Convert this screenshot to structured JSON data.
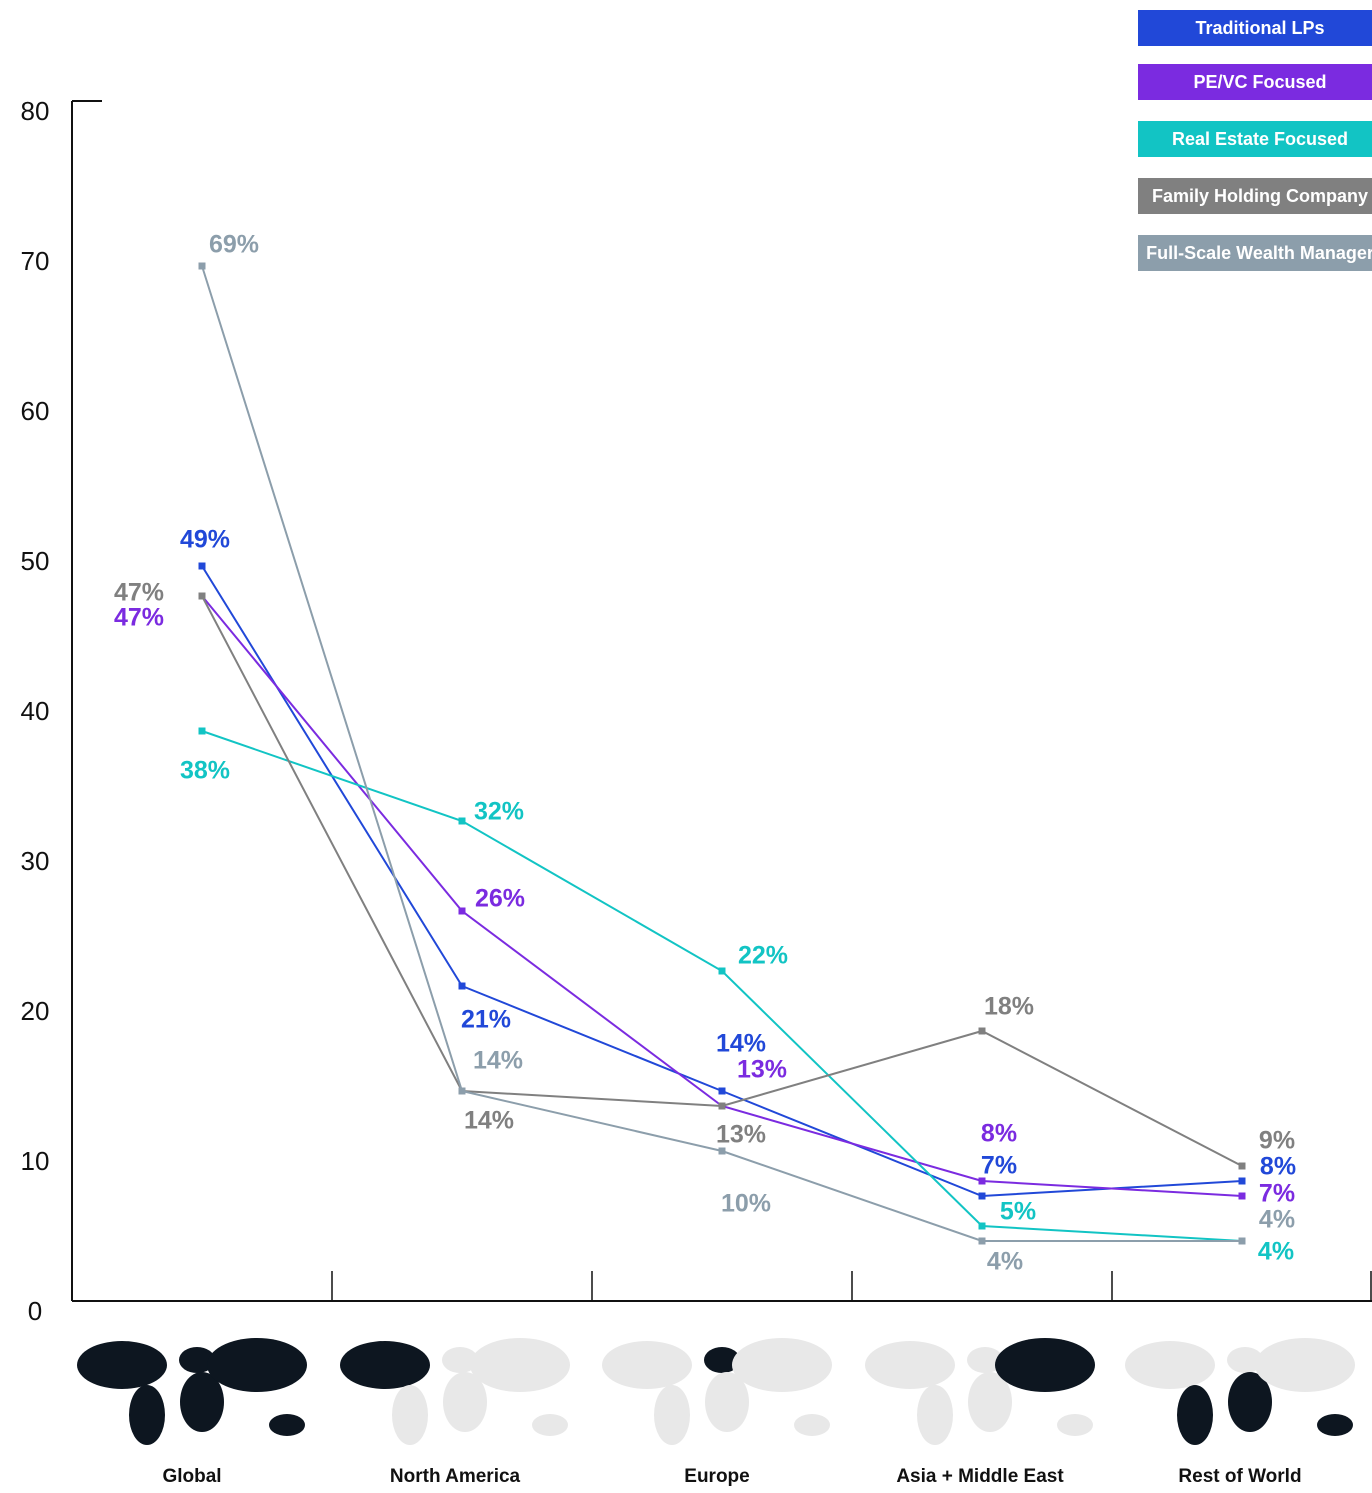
{
  "chart_data": {
    "type": "line",
    "categories": [
      "Global",
      "North America",
      "Europe",
      "Asia + Middle East",
      "Rest of World"
    ],
    "ylim": [
      0,
      80
    ],
    "yticks": [
      0,
      10,
      20,
      30,
      40,
      50,
      60,
      70,
      80
    ],
    "legend": "top-right",
    "series": [
      {
        "name": "Traditional LPs",
        "color": "#2148d8",
        "values": [
          49,
          21,
          14,
          7,
          8
        ],
        "value_labels": [
          "49%",
          "21%",
          "14%",
          "7%",
          "8%"
        ]
      },
      {
        "name": "PE/VC Focused",
        "color": "#7b2be0",
        "values": [
          47,
          26,
          13,
          8,
          7
        ],
        "value_labels": [
          "47%",
          "26%",
          "13%",
          "8%",
          "7%"
        ]
      },
      {
        "name": "Real Estate Focused",
        "color": "#12c4c4",
        "values": [
          38,
          32,
          22,
          5,
          4
        ],
        "value_labels": [
          "38%",
          "32%",
          "22%",
          "5%",
          "4%"
        ]
      },
      {
        "name": "Family Holding Company",
        "color": "#808080",
        "values": [
          47,
          14,
          13,
          18,
          9
        ],
        "value_labels": [
          "47%",
          "14%",
          "13%",
          "18%",
          "9%"
        ]
      },
      {
        "name": "Full-Scale Wealth Manager",
        "color": "#8c9eab",
        "values": [
          69,
          14,
          10,
          4,
          4
        ],
        "value_labels": [
          "69%",
          "14%",
          "10%",
          "4%",
          "4%"
        ]
      }
    ]
  }
}
